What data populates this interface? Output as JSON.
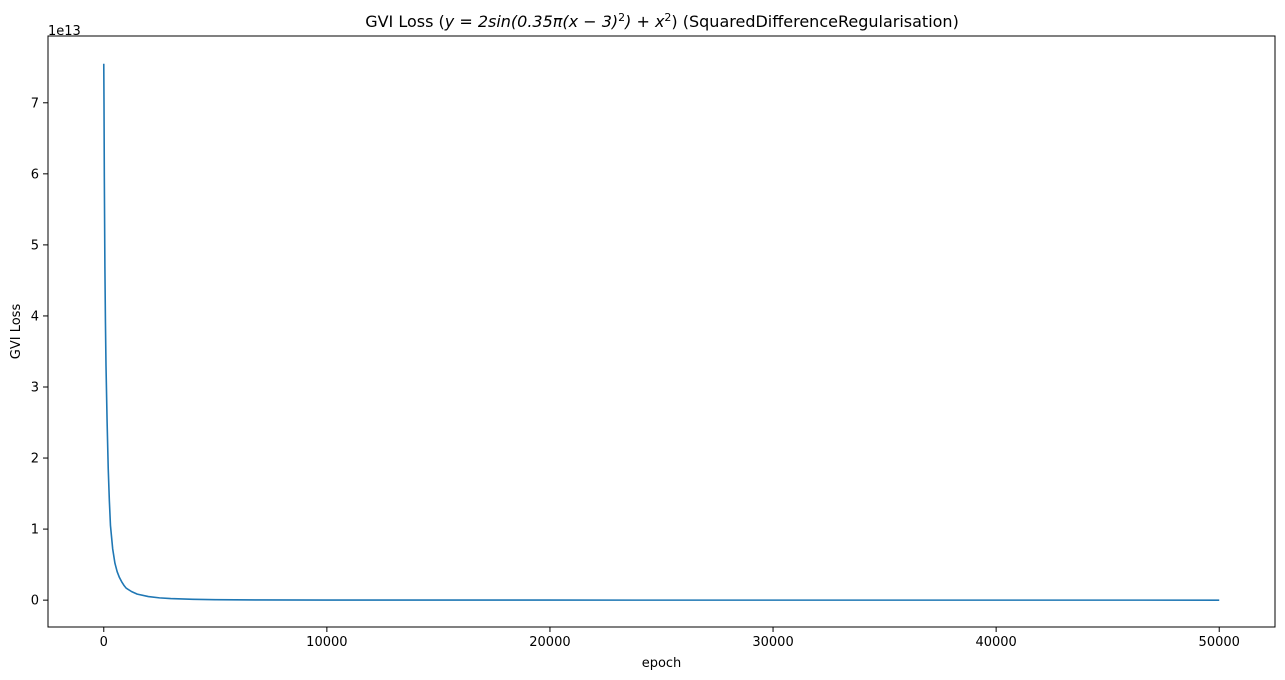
{
  "chart_data": {
    "type": "line",
    "title": "GVI Loss (y = 2sin(0.35π(x − 3)²) + x²) (SquaredDifferenceRegularisation)",
    "title_parts": {
      "prefix": "GVI Loss (",
      "formula": "y = 2sin(0.35π(x − 3)",
      "sq1": "2",
      "mid": ") + x",
      "sq2": "2",
      "suffix": ") (SquaredDifferenceRegularisation)"
    },
    "xlabel": "epoch",
    "ylabel": "GVI Loss",
    "y_offset_text": "1e13",
    "xlim": [
      -2500,
      52500
    ],
    "ylim": [
      -0.378,
      7.94
    ],
    "xticks": [
      0,
      10000,
      20000,
      30000,
      40000,
      50000
    ],
    "xtick_labels": [
      "0",
      "10000",
      "20000",
      "30000",
      "40000",
      "50000"
    ],
    "yticks": [
      0,
      1,
      2,
      3,
      4,
      5,
      6,
      7
    ],
    "ytick_labels": [
      "0",
      "1",
      "2",
      "3",
      "4",
      "5",
      "6",
      "7"
    ],
    "y_scale_note": "values in units of 1e13",
    "grid": false,
    "series": [
      {
        "color": "#1f77b4",
        "x": [
          0,
          10,
          25,
          50,
          75,
          100,
          150,
          200,
          250,
          300,
          400,
          500,
          600,
          700,
          800,
          900,
          1000,
          1250,
          1500,
          2000,
          2500,
          3000,
          4000,
          5000,
          7000,
          10000,
          15000,
          20000,
          30000,
          40000,
          50000
        ],
        "y": [
          7.55,
          7.0,
          5.95,
          4.7,
          3.9,
          3.3,
          2.5,
          1.85,
          1.4,
          1.05,
          0.72,
          0.52,
          0.4,
          0.32,
          0.26,
          0.21,
          0.17,
          0.12,
          0.085,
          0.05,
          0.032,
          0.022,
          0.012,
          0.007,
          0.003,
          0.0015,
          0.0008,
          0.0005,
          0.0003,
          0.0002,
          0.0001
        ]
      }
    ]
  }
}
